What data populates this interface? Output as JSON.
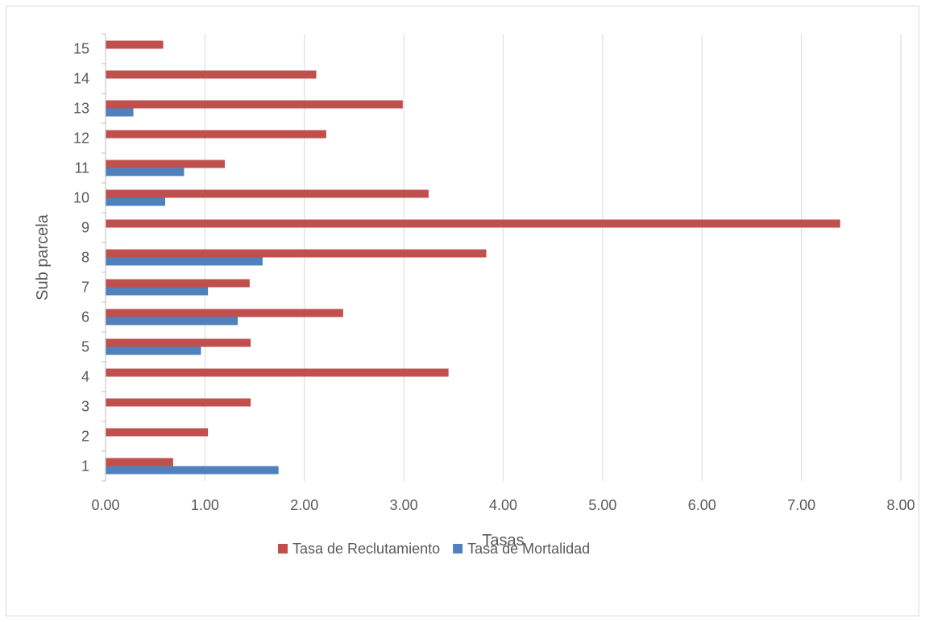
{
  "chart_data": {
    "type": "bar",
    "orientation": "horizontal",
    "title": "",
    "xlabel": "Tasas",
    "ylabel": "Sub parcela",
    "xlim": [
      0,
      8
    ],
    "x_ticks": [
      "0.00",
      "1.00",
      "2.00",
      "3.00",
      "4.00",
      "5.00",
      "6.00",
      "7.00",
      "8.00"
    ],
    "grid": "vertical",
    "legend_position": "bottom",
    "categories": [
      "1",
      "2",
      "3",
      "4",
      "5",
      "6",
      "7",
      "8",
      "9",
      "10",
      "11",
      "12",
      "13",
      "14",
      "15"
    ],
    "series": [
      {
        "name": "Tasa de Reclutamiento",
        "color": "#c0504d",
        "values": [
          0.68,
          1.03,
          1.46,
          3.45,
          1.46,
          2.39,
          1.45,
          3.83,
          7.39,
          3.25,
          1.2,
          2.22,
          2.99,
          2.12,
          0.58
        ]
      },
      {
        "name": "Tasa de Mortalidad",
        "color": "#4f81bd",
        "values": [
          1.74,
          0,
          0,
          0,
          0.96,
          1.33,
          1.03,
          1.58,
          0,
          0.6,
          0.79,
          0,
          0.28,
          0,
          0
        ]
      }
    ]
  }
}
